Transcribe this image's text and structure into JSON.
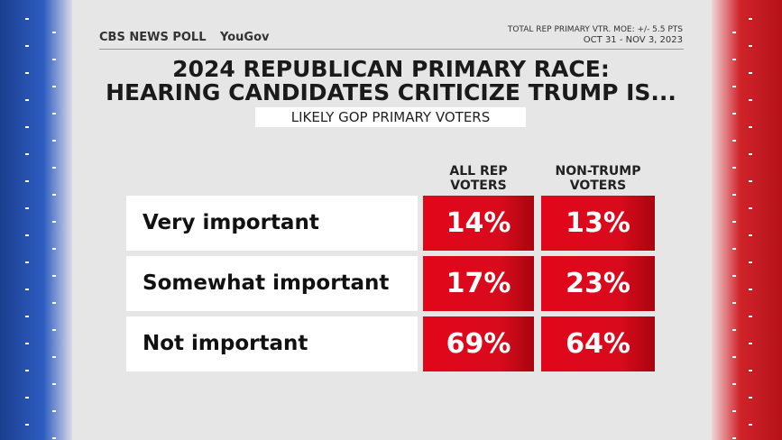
{
  "header": {
    "brand": "CBS NEWS POLL",
    "partner": "YouGov",
    "note": [
      "TOTAL REP PRIMARY VTR. MOE: +/- 5.5 PTS",
      "OCT 31 - NOV 3, 2023"
    ]
  },
  "title": [
    "2024 REPUBLICAN PRIMARY RACE:",
    "HEARING CANDIDATES CRITICIZE TRUMP IS..."
  ],
  "subtitle": "LIKELY GOP PRIMARY VOTERS",
  "table": {
    "columns": [
      [
        "ALL REP",
        "VOTERS"
      ],
      [
        "NON-TRUMP",
        "VOTERS"
      ]
    ],
    "rows": [
      [
        "Very important",
        "14%",
        "13%"
      ],
      [
        "Somewhat important",
        "17%",
        "23%"
      ],
      [
        "Not important",
        "69%",
        "64%"
      ]
    ]
  }
}
